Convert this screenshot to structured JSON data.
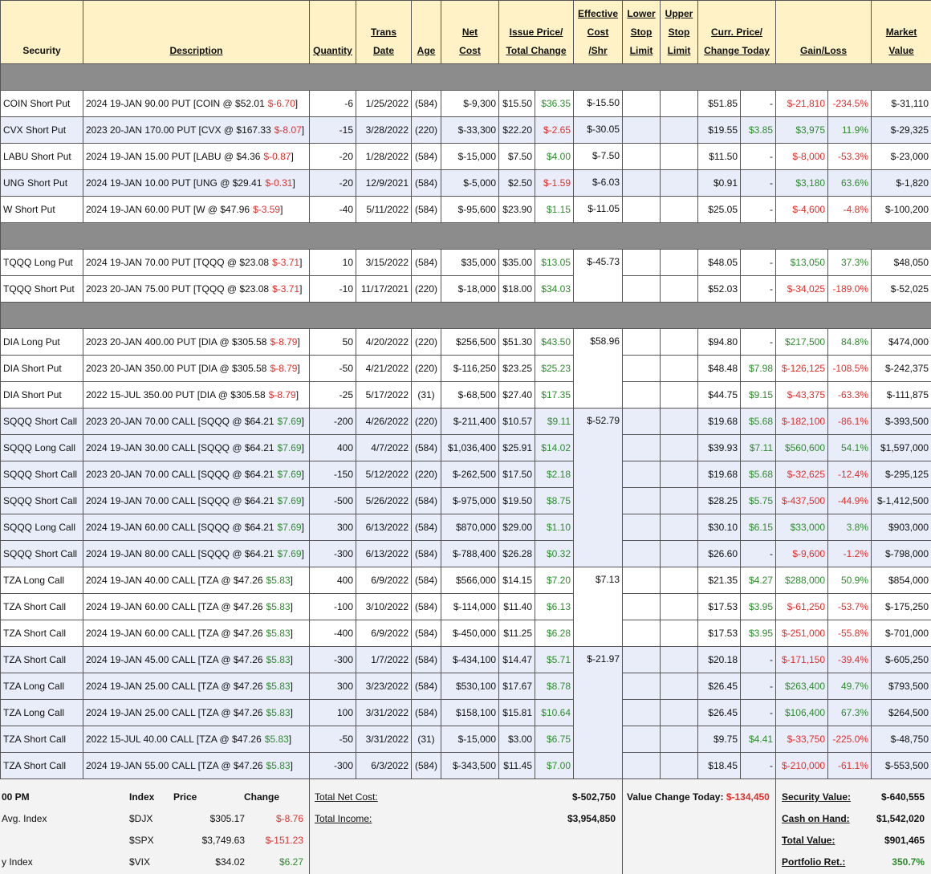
{
  "header": {
    "columns": [
      [
        "Security"
      ],
      [
        "Description"
      ],
      [
        "Quantity"
      ],
      [
        "Trans",
        "Date"
      ],
      [
        "Age"
      ],
      [
        "Net",
        "Cost"
      ],
      [
        "Issue Price/",
        "Total Change"
      ],
      [
        "Effective",
        "Cost",
        "/Shr"
      ],
      [
        "Lower",
        "Stop",
        "Limit"
      ],
      [
        "Upper",
        "Stop",
        "Limit"
      ],
      [
        "Curr. Price/",
        "Change Today"
      ],
      [
        "Gain/Loss"
      ],
      [
        "Market",
        "Value"
      ]
    ]
  },
  "sections": [
    {
      "groups": [
        {
          "effective_cost": "$-15.50",
          "shaded": false,
          "rows": [
            [
              "COIN Short Put",
              [
                "2024 19-JAN 90.00 PUT [COIN @ $52.01",
                "$-6.70",
                "]"
              ],
              "-6",
              "1/25/2022",
              "(584)",
              "$-9,300",
              "$15.50",
              "$36.35",
              "$51.85",
              "-",
              "$-21,810",
              "-234.5%",
              "$-31,110"
            ]
          ]
        },
        {
          "effective_cost": "$-30.05",
          "shaded": true,
          "rows": [
            [
              "CVX Short Put",
              [
                "2023 20-JAN 170.00 PUT [CVX @ $167.33",
                "$-8.07",
                "]"
              ],
              "-15",
              "3/28/2022",
              "(220)",
              "$-33,300",
              "$22.20",
              "$-2.65",
              "$19.55",
              "$3.85",
              "$3,975",
              "11.9%",
              "$-29,325"
            ]
          ]
        },
        {
          "effective_cost": "$-7.50",
          "shaded": false,
          "rows": [
            [
              "LABU Short Put",
              [
                "2024 19-JAN 15.00 PUT [LABU @ $4.36",
                "$-0.87",
                "]"
              ],
              "-20",
              "1/28/2022",
              "(584)",
              "$-15,000",
              "$7.50",
              "$4.00",
              "$11.50",
              "-",
              "$-8,000",
              "-53.3%",
              "$-23,000"
            ]
          ]
        },
        {
          "effective_cost": "$-6.03",
          "shaded": true,
          "rows": [
            [
              "UNG Short Put",
              [
                "2024 19-JAN 10.00 PUT [UNG @ $29.41",
                "$-0.31",
                "]"
              ],
              "-20",
              "12/9/2021",
              "(584)",
              "$-5,000",
              "$2.50",
              "$-1.59",
              "$0.91",
              "-",
              "$3,180",
              "63.6%",
              "$-1,820"
            ]
          ]
        },
        {
          "effective_cost": "$-11.05",
          "shaded": false,
          "rows": [
            [
              "W Short Put",
              [
                "2024 19-JAN 60.00 PUT [W @ $47.96",
                "$-3.59",
                "]"
              ],
              "-40",
              "5/11/2022",
              "(584)",
              "$-95,600",
              "$23.90",
              "$1.15",
              "$25.05",
              "-",
              "$-4,600",
              "-4.8%",
              "$-100,200"
            ]
          ]
        }
      ]
    },
    {
      "groups": [
        {
          "effective_cost": "$-45.73",
          "shaded": false,
          "rows": [
            [
              "TQQQ Long Put",
              [
                "2024 19-JAN 70.00 PUT [TQQQ @ $23.08",
                "$-3.71",
                "]"
              ],
              "10",
              "3/15/2022",
              "(584)",
              "$35,000",
              "$35.00",
              "$13.05",
              "$48.05",
              "-",
              "$13,050",
              "37.3%",
              "$48,050"
            ],
            [
              "TQQQ Short Put",
              [
                "2023 20-JAN 75.00 PUT [TQQQ @ $23.08",
                "$-3.71",
                "]"
              ],
              "-10",
              "11/17/2021",
              "(220)",
              "$-18,000",
              "$18.00",
              "$34.03",
              "$52.03",
              "-",
              "$-34,025",
              "-189.0%",
              "$-52,025"
            ]
          ]
        }
      ]
    },
    {
      "groups": [
        {
          "effective_cost": "$58.96",
          "shaded": false,
          "rows": [
            [
              "DIA Long Put",
              [
                "2023 20-JAN 400.00 PUT [DIA @ $305.58",
                "$-8.79",
                "]"
              ],
              "50",
              "4/20/2022",
              "(220)",
              "$256,500",
              "$51.30",
              "$43.50",
              "$94.80",
              "-",
              "$217,500",
              "84.8%",
              "$474,000"
            ],
            [
              "DIA Short Put",
              [
                "2023 20-JAN 350.00 PUT [DIA @ $305.58",
                "$-8.79",
                "]"
              ],
              "-50",
              "4/21/2022",
              "(220)",
              "$-116,250",
              "$23.25",
              "$25.23",
              "$48.48",
              "$7.98",
              "$-126,125",
              "-108.5%",
              "$-242,375"
            ],
            [
              "DIA Short Put",
              [
                "2022 15-JUL 350.00 PUT [DIA @ $305.58",
                "$-8.79",
                "]"
              ],
              "-25",
              "5/17/2022",
              "(31)",
              "$-68,500",
              "$27.40",
              "$17.35",
              "$44.75",
              "$9.15",
              "$-43,375",
              "-63.3%",
              "$-111,875"
            ]
          ]
        },
        {
          "effective_cost": "$-52.79",
          "shaded": true,
          "rows": [
            [
              "SQQQ Short Call",
              [
                "2023 20-JAN 70.00 CALL [SQQQ @ $64.21",
                "$7.69",
                "]"
              ],
              "-200",
              "4/26/2022",
              "(220)",
              "$-211,400",
              "$10.57",
              "$9.11",
              "$19.68",
              "$5.68",
              "$-182,100",
              "-86.1%",
              "$-393,500"
            ],
            [
              "SQQQ Long Call",
              [
                "2024 19-JAN 30.00 CALL [SQQQ @ $64.21",
                "$7.69",
                "]"
              ],
              "400",
              "4/7/2022",
              "(584)",
              "$1,036,400",
              "$25.91",
              "$14.02",
              "$39.93",
              "$7.11",
              "$560,600",
              "54.1%",
              "$1,597,000"
            ],
            [
              "SQQQ Short Call",
              [
                "2023 20-JAN 70.00 CALL [SQQQ @ $64.21",
                "$7.69",
                "]"
              ],
              "-150",
              "5/12/2022",
              "(220)",
              "$-262,500",
              "$17.50",
              "$2.18",
              "$19.68",
              "$5.68",
              "$-32,625",
              "-12.4%",
              "$-295,125"
            ],
            [
              "SQQQ Short Call",
              [
                "2024 19-JAN 70.00 CALL [SQQQ @ $64.21",
                "$7.69",
                "]"
              ],
              "-500",
              "5/26/2022",
              "(584)",
              "$-975,000",
              "$19.50",
              "$8.75",
              "$28.25",
              "$5.75",
              "$-437,500",
              "-44.9%",
              "$-1,412,500"
            ],
            [
              "SQQQ Long Call",
              [
                "2024 19-JAN 60.00 CALL [SQQQ @ $64.21",
                "$7.69",
                "]"
              ],
              "300",
              "6/13/2022",
              "(584)",
              "$870,000",
              "$29.00",
              "$1.10",
              "$30.10",
              "$6.15",
              "$33,000",
              "3.8%",
              "$903,000"
            ],
            [
              "SQQQ Short Call",
              [
                "2024 19-JAN 80.00 CALL [SQQQ @ $64.21",
                "$7.69",
                "]"
              ],
              "-300",
              "6/13/2022",
              "(584)",
              "$-788,400",
              "$26.28",
              "$0.32",
              "$26.60",
              "-",
              "$-9,600",
              "-1.2%",
              "$-798,000"
            ]
          ]
        },
        {
          "effective_cost": "$7.13",
          "shaded": false,
          "rows": [
            [
              "TZA Long Call",
              [
                "2024 19-JAN 40.00 CALL [TZA @ $47.26",
                "$5.83",
                "]"
              ],
              "400",
              "6/9/2022",
              "(584)",
              "$566,000",
              "$14.15",
              "$7.20",
              "$21.35",
              "$4.27",
              "$288,000",
              "50.9%",
              "$854,000"
            ],
            [
              "TZA Short Call",
              [
                "2024 19-JAN 60.00 CALL [TZA @ $47.26",
                "$5.83",
                "]"
              ],
              "-100",
              "3/10/2022",
              "(584)",
              "$-114,000",
              "$11.40",
              "$6.13",
              "$17.53",
              "$3.95",
              "$-61,250",
              "-53.7%",
              "$-175,250"
            ],
            [
              "TZA Short Call",
              [
                "2024 19-JAN 60.00 CALL [TZA @ $47.26",
                "$5.83",
                "]"
              ],
              "-400",
              "6/9/2022",
              "(584)",
              "$-450,000",
              "$11.25",
              "$6.28",
              "$17.53",
              "$3.95",
              "$-251,000",
              "-55.8%",
              "$-701,000"
            ]
          ]
        },
        {
          "effective_cost": "$-21.97",
          "shaded": true,
          "rows": [
            [
              "TZA Short Call",
              [
                "2024 19-JAN 45.00 CALL [TZA @ $47.26",
                "$5.83",
                "]"
              ],
              "-300",
              "1/7/2022",
              "(584)",
              "$-434,100",
              "$14.47",
              "$5.71",
              "$20.18",
              "-",
              "$-171,150",
              "-39.4%",
              "$-605,250"
            ],
            [
              "TZA Long Call",
              [
                "2024 19-JAN 25.00 CALL [TZA @ $47.26",
                "$5.83",
                "]"
              ],
              "300",
              "3/23/2022",
              "(584)",
              "$530,100",
              "$17.67",
              "$8.78",
              "$26.45",
              "-",
              "$263,400",
              "49.7%",
              "$793,500"
            ],
            [
              "TZA Long Call",
              [
                "2024 19-JAN 25.00 CALL [TZA @ $47.26",
                "$5.83",
                "]"
              ],
              "100",
              "3/31/2022",
              "(584)",
              "$158,100",
              "$15.81",
              "$10.64",
              "$26.45",
              "-",
              "$106,400",
              "67.3%",
              "$264,500"
            ],
            [
              "TZA Short Call",
              [
                "2022 15-JUL 40.00 CALL [TZA @ $47.26",
                "$5.83",
                "]"
              ],
              "-50",
              "3/31/2022",
              "(31)",
              "$-15,000",
              "$3.00",
              "$6.75",
              "$9.75",
              "$4.41",
              "$-33,750",
              "-225.0%",
              "$-48,750"
            ],
            [
              "TZA Short Call",
              [
                "2024 19-JAN 55.00 CALL [TZA @ $47.26",
                "$5.83",
                "]"
              ],
              "-300",
              "6/3/2022",
              "(584)",
              "$-343,500",
              "$11.45",
              "$7.00",
              "$18.45",
              "-",
              "$-210,000",
              "-61.1%",
              "$-553,500"
            ]
          ]
        }
      ]
    }
  ],
  "footer": {
    "indices": {
      "headers": [
        "00 PM",
        "Index",
        "Price",
        "Change"
      ],
      "rows": [
        {
          "label": "Avg. Index",
          "symbol": "$DJX",
          "price": "$305.17",
          "change": "$-8.76"
        },
        {
          "symbol": "$SPX",
          "price": "$3,749.63",
          "change": "$-151.23"
        },
        {
          "label": "y Index",
          "symbol": "$VIX",
          "price": "$34.02",
          "change": "$6.27"
        }
      ]
    },
    "totals": [
      {
        "label": "Total Net Cost:",
        "value": "$-502,750"
      },
      {
        "label": "Total Income:",
        "value": "$3,954,850"
      }
    ],
    "value_change": {
      "label": "Value Change Today:",
      "value": "$-134,450"
    },
    "summary": [
      {
        "label": "Security Value:",
        "value": "$-640,555"
      },
      {
        "label": "Cash on Hand:",
        "value": "$1,542,020"
      },
      {
        "label": "Total Value:",
        "value": "$901,465"
      },
      {
        "label": "Portfolio Ret.:",
        "value": "350.7%"
      }
    ]
  }
}
